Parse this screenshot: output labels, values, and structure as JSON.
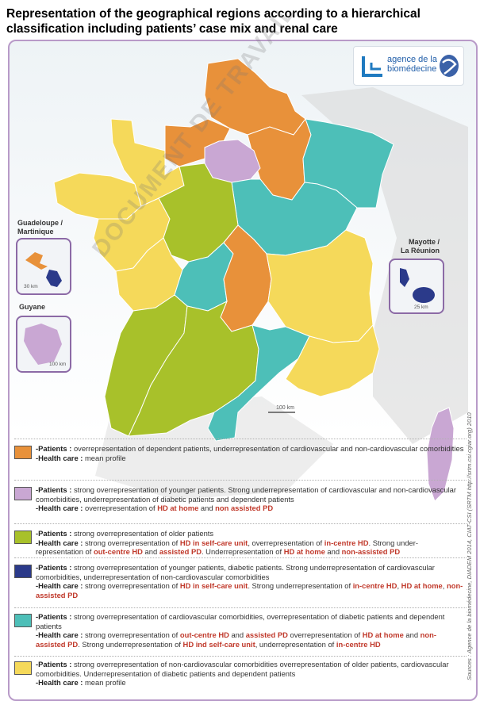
{
  "title": "Representation of the geographical regions according to a hierarchical classification including patients’ case mix and renal care",
  "logo": {
    "line1": "agence de la",
    "line2": "biomédecine"
  },
  "insets": {
    "guadeloupe_label": "Guadeloupe /",
    "martinique_label": "Martinique",
    "guyane_label": "Guyane",
    "mayotte_label": "Mayotte /",
    "reunion_label": "La Réunion",
    "scale_30": "30 km",
    "scale_100": "100 km",
    "scale_25": "25 km"
  },
  "map_scale": "100 km",
  "watermark": "DOCUMENT DE TRAVAIL",
  "colors": {
    "orange": "#e8913a",
    "purple": "#c9a7d3",
    "green": "#a8c12a",
    "navy": "#2b3a8a",
    "teal": "#4dbfb8",
    "yellow": "#f5d95a"
  },
  "legend": [
    {
      "color": "#e8913a",
      "patients_prefix": "-Patients : ",
      "patients": "overrepresentation of dependent patients, underrepresentation of cardiovascular and non-cardiovascular comorbidities",
      "hc_prefix": "-Health care : ",
      "healthcare": "mean profile"
    },
    {
      "color": "#c9a7d3",
      "patients_prefix": "-Patients : ",
      "patients": "strong overrepresentation of younger patients. Strong underrepresentation of cardiovascular and non-cardiovascular comorbidities, underrepresentation of diabetic patients and dependent patients",
      "hc_prefix": "-Health care : ",
      "healthcare": "overrepresentation of HD at home and non assisted PD"
    },
    {
      "color": "#a8c12a",
      "patients_prefix": "-Patients : ",
      "patients": "strong overrepresentation of older patients",
      "hc_prefix": "-Health care : ",
      "healthcare": "strong overrepresentation of HD in self-care unit, overrepresentation of in-centre HD. Strong under-representation of out-centre HD and assisted PD. Underrepresentation of HD at home and non-assisted PD"
    },
    {
      "color": "#2b3a8a",
      "patients_prefix": "-Patients : ",
      "patients": "strong overrepresentation of younger patients, diabetic patients. Strong underrepresentation of cardiovascular comorbidities, underrepresentation of non-cardiovascular comorbidities",
      "hc_prefix": "-Health care : ",
      "healthcare": "strong overrepresentation of HD in self-care unit. Strong underrepresentation of in-centre HD, HD at home, non-assisted PD"
    },
    {
      "color": "#4dbfb8",
      "patients_prefix": "-Patients : ",
      "patients": "strong overrepresentation of cardiovascular comorbidities, overrepresentation of diabetic patients and dependent patients",
      "hc_prefix": "-Health care : ",
      "healthcare": "strong overrepresentation of out-centre HD and assisted PD overrepresentation of HD at home and non-assisted PD. Strong underrepresentation of HD ind self-care unit, underrepresentation of in-centre HD"
    },
    {
      "color": "#f5d95a",
      "patients_prefix": "-Patients : ",
      "patients": "strong overrepresentation of non-cardiovascular comorbidities overrepresentation of older patients, cardiovascular comorbidities. Underrepresentation of diabetic patients and dependent patients",
      "hc_prefix": "-Health care : ",
      "healthcare": "mean profile"
    }
  ],
  "source": "Sources : Agence de la biomédecine, DIADEM 2014, CIAT-CSI (SRTM http://srtm.csi.cgiar.org) 2010"
}
